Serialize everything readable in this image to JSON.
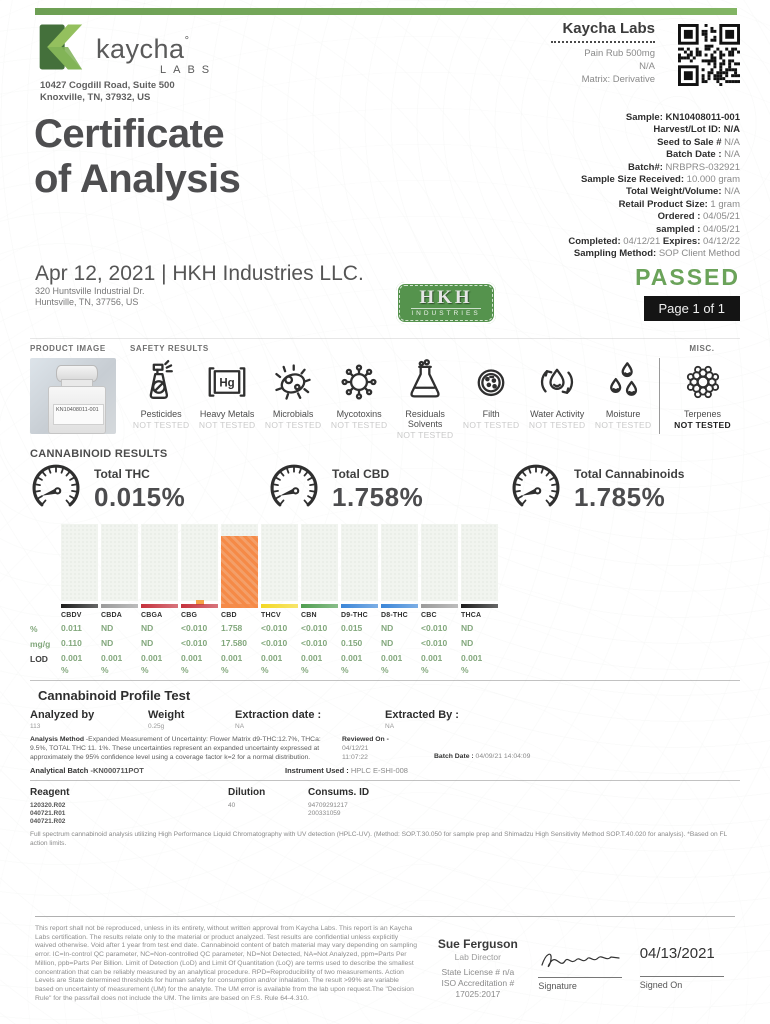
{
  "brand": {
    "name": "kaycha",
    "reg": "°",
    "sub": "LABS",
    "address1": "10427 Cogdill Road, Suite 500",
    "address2": "Knoxville, TN, 37932, US"
  },
  "header_right": {
    "lab_name": "Kaycha Labs",
    "product": "Pain Rub 500mg",
    "product_alt": "N/A",
    "matrix": "Matrix: Derivative"
  },
  "sample_info": [
    {
      "label": "Sample:",
      "value": "KN10408011-001",
      "strong": true
    },
    {
      "label": "Harvest/Lot ID:",
      "value": "N/A",
      "strong": true
    },
    {
      "label": "Seed to Sale #",
      "value": "N/A"
    },
    {
      "label": "Batch Date :",
      "value": "N/A"
    },
    {
      "label": "Batch#:",
      "value": "NRBPRS-032921"
    },
    {
      "label": "Sample Size Received:",
      "value": "10.000 gram"
    },
    {
      "label": "Total Weight/Volume:",
      "value": "N/A"
    },
    {
      "label": "Retail Product Size:",
      "value": "1 gram"
    },
    {
      "label": "Ordered :",
      "value": "04/05/21"
    },
    {
      "label": "sampled :",
      "value": "04/05/21"
    },
    {
      "label": "Completed:",
      "value": "04/12/21",
      "label2": "Expires:",
      "value2": "04/12/22"
    },
    {
      "label": "Sampling Method:",
      "value": "SOP Client Method"
    }
  ],
  "title": {
    "line1": "Certificate",
    "line2": "of Analysis"
  },
  "client": {
    "headline": "Apr 12, 2021 | HKH Industries LLC.",
    "address1": "320 Huntsville Industrial Dr.",
    "address2": "Huntsville, TN, 37756, US",
    "badge_top": "HKH",
    "badge_bottom": "INDUSTRIES"
  },
  "status": {
    "passed": "PASSED",
    "page": "Page 1 of 1"
  },
  "section_labels": {
    "product_image": "PRODUCT IMAGE",
    "safety_results": "SAFETY RESULTS",
    "misc": "MISC.",
    "cannabinoid_results": "CANNABINOID RESULTS"
  },
  "product_image": {
    "jar_label": "KN10408011-001"
  },
  "safety_tests": [
    {
      "name": "Pesticides",
      "status": "NOT TESTED",
      "icon": "pesticides"
    },
    {
      "name": "Heavy Metals",
      "status": "NOT TESTED",
      "icon": "heavy-metals"
    },
    {
      "name": "Microbials",
      "status": "NOT TESTED",
      "icon": "microbials"
    },
    {
      "name": "Mycotoxins",
      "status": "NOT TESTED",
      "icon": "mycotoxins"
    },
    {
      "name": "Residuals Solvents",
      "status": "NOT TESTED",
      "icon": "residual-solvents"
    },
    {
      "name": "Filth",
      "status": "NOT TESTED",
      "icon": "filth"
    },
    {
      "name": "Water Activity",
      "status": "NOT TESTED",
      "icon": "water-activity"
    },
    {
      "name": "Moisture",
      "status": "NOT TESTED",
      "icon": "moisture"
    }
  ],
  "misc_test": {
    "name": "Terpenes",
    "status": "NOT TESTED",
    "icon": "terpenes"
  },
  "totals": [
    {
      "label": "Total THC",
      "value": "0.015%"
    },
    {
      "label": "Total CBD",
      "value": "1.758%"
    },
    {
      "label": "Total Cannabinoids",
      "value": "1.785%"
    }
  ],
  "chart_data": {
    "type": "bar",
    "title": "Cannabinoid profile",
    "categories": [
      "CBDV",
      "CBDA",
      "CBGA",
      "CBG",
      "CBD",
      "THCV",
      "CBN",
      "D9-THC",
      "D8-THC",
      "CBC",
      "THCA"
    ],
    "series": [
      {
        "name": "%",
        "values": [
          "0.011",
          "ND",
          "ND",
          "<0.010",
          "1.758",
          "<0.010",
          "<0.010",
          "0.015",
          "ND",
          "<0.010",
          "ND"
        ]
      },
      {
        "name": "mg/g",
        "values": [
          "0.110",
          "ND",
          "ND",
          "<0.010",
          "17.580",
          "<0.010",
          "<0.010",
          "0.150",
          "ND",
          "<0.010",
          "ND"
        ]
      },
      {
        "name": "LOD",
        "values": [
          "0.001",
          "0.001",
          "0.001",
          "0.001",
          "0.001",
          "0.001",
          "0.001",
          "0.001",
          "0.001",
          "0.001",
          "0.001"
        ],
        "unit": "%"
      }
    ],
    "row_labels": [
      "%",
      "mg/g",
      "LOD"
    ],
    "bar_heights_pct": [
      0,
      0,
      0,
      0,
      90,
      0,
      0,
      0,
      0,
      0,
      0
    ],
    "markers": [
      false,
      false,
      false,
      true,
      false,
      false,
      false,
      false,
      false,
      false,
      false
    ],
    "bar_colors": [
      "#1c1c1c",
      "#9b9b9b",
      "#c5313c",
      "#c5313c",
      "#f58a47",
      "#f3d824",
      "#4f9e50",
      "#3b86d8",
      "#3b86d8",
      "#9b9b9b",
      "#1c1c1c"
    ],
    "marker_color": "#f5a347",
    "ylim": [
      0,
      1.758
    ],
    "grid": false,
    "legend": "none",
    "xlabel": "",
    "ylabel": ""
  },
  "profile_test": {
    "heading": "Cannabinoid Profile Test",
    "fields": [
      {
        "label": "Analyzed by",
        "value": "113"
      },
      {
        "label": "Weight",
        "value": "0.25g"
      },
      {
        "label": "Extraction date :",
        "value": "NA"
      },
      {
        "label": "Extracted By :",
        "value": "NA"
      }
    ],
    "analysis_method_label": "Analysis Method",
    "analysis_method": "-Expanded Measurement of Uncertainty: Flower Matrix d9-THC:12.7%, THCa: 9.5%, TOTAL THC 11. 1%. These uncertainties represent an expanded uncertainty expressed at approximately the 95% confidence level using a coverage factor k=2 for a normal distribution.",
    "reviewed_on_label": "Reviewed On -",
    "reviewed_on_line1": "04/12/21",
    "reviewed_on_line2": "11:07:22",
    "batch_date_label": "Batch Date :",
    "batch_date": "04/09/21 14:04:09",
    "analytical_batch_label": "Analytical Batch",
    "analytical_batch": "-KN000711POT",
    "instrument_label": "Instrument Used :",
    "instrument": "HPLC E-SHI-008"
  },
  "reagents": {
    "header_reagent": "Reagent",
    "header_dilution": "Dilution",
    "header_consums": "Consums. ID",
    "reagent_list": [
      "120320.R02",
      "040721.R01",
      "040721.R02"
    ],
    "dilution": "40",
    "consums_list": [
      "94709291217",
      "200331059"
    ],
    "note": "Full spectrum cannabinoid analysis utilizing High Performance Liquid Chromatography with UV detection (HPLC-UV). (Method: SOP.T.30.050 for sample prep and Shimadzu High Sensitivity Method SOP.T.40.020 for analysis). *Based on FL action limits."
  },
  "footer": {
    "disclaimer": "This report shall not be reproduced, unless in its entirety, without written approval from Kaycha Labs. This report is an Kaycha Labs certification. The results relate only to the material or product analyzed. Test results are confidential unless explicitly waived otherwise. Void after 1 year from test end date. Cannabinoid content of batch material may vary depending on sampling error. IC=In-control QC parameter, NC=Non-controlled QC parameter, ND=Not Detected, NA=Not Analyzed, ppm=Parts Per Million, ppb=Parts Per Billion. Limit of Detection (LoD) and Limit Of Quantitation (LoQ) are terms used to describe the smallest concentration that can be reliably measured by an analytical procedure. RPD=Reproducibility of two measurements. Action Levels are State determined thresholds for human safety for consumption and/or inhalation. The result >99% are variable based on uncertainty of measurement (UM) for the analyte. The UM error is available from the lab upon request.The \"Decision Rule\" for the pass/fail does not include the UM. The limits are based on F.S. Rule 64-4.310.",
    "signer_name": "Sue Ferguson",
    "signer_title": "Lab Director",
    "license": "State License # n/a",
    "accreditation1": "ISO Accreditation #",
    "accreditation2": "17025:2017",
    "signature_label": "Signature",
    "signed_on_label": "Signed On",
    "signed_date": "04/13/2021"
  },
  "colors": {
    "accent_green": "#76a75c",
    "passed_green": "#6ba35a",
    "value_green": "#83a87d",
    "bar_orange": "#f58a47",
    "page_box_black": "#141414"
  }
}
